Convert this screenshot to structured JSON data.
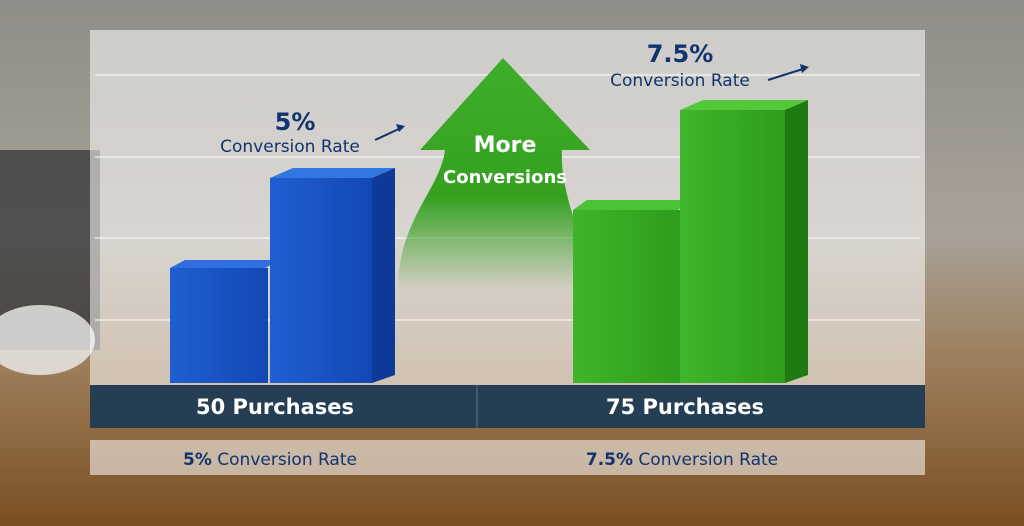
{
  "left": {
    "rate_value": "5%",
    "rate_caption": "Conversion Rate",
    "purchases": "50 Purchases",
    "footer_value": "5%",
    "footer_caption": "Conversion Rate"
  },
  "center": {
    "line1": "More",
    "line2": "Conversions"
  },
  "right": {
    "rate_value": "7.5%",
    "rate_caption": "Conversion Rate",
    "purchases": "75 Purchases",
    "footer_value": "7.5%",
    "footer_caption": "Conversion Rate"
  }
}
